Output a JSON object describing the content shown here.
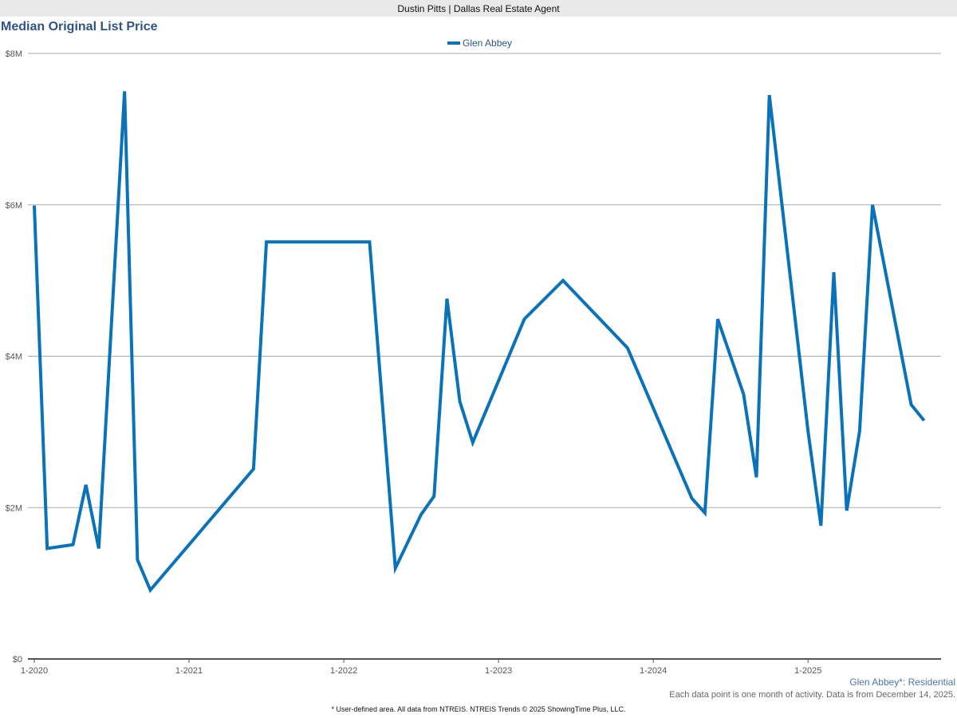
{
  "header": {
    "agent": "Dustin Pitts | Dallas Real Estate Agent"
  },
  "footer": {
    "area_label": "Glen Abbey*: Residential",
    "note": "Each data point is one month of activity. Data is from December 14, 2025.",
    "disclaimer": "* User-defined area. All data from NTREIS. NTREIS Trends © 2025 ShowingTime Plus, LLC."
  },
  "chart_data": {
    "type": "line",
    "title": "Median Original List Price",
    "xlabel": "",
    "ylabel": "",
    "ylim": [
      0,
      8000000
    ],
    "yticks": [
      0,
      2000000,
      4000000,
      6000000,
      8000000
    ],
    "ytick_labels": [
      "$0",
      "$2M",
      "$4M",
      "$6M",
      "$8M"
    ],
    "xtick_labels": [
      "1-2020",
      "1-2021",
      "1-2022",
      "1-2023",
      "1-2024",
      "1-2025"
    ],
    "xtick_months": [
      0,
      12,
      24,
      36,
      48,
      60
    ],
    "xlim_months": [
      0,
      70
    ],
    "grid": true,
    "legend_position": "top-center",
    "color": "#0a72b8",
    "series": [
      {
        "name": "Glen Abbey",
        "x": [
          "2020-01",
          "2020-02",
          "2020-04",
          "2020-05",
          "2020-06",
          "2020-08",
          "2020-09",
          "2020-10",
          "2021-06",
          "2021-07",
          "2022-03",
          "2022-05",
          "2022-07",
          "2022-08",
          "2022-09",
          "2022-10",
          "2022-11",
          "2023-03",
          "2023-06",
          "2023-11",
          "2024-04",
          "2024-05",
          "2024-06",
          "2024-08",
          "2024-09",
          "2024-10",
          "2025-01",
          "2025-02",
          "2025-03",
          "2025-04",
          "2025-05",
          "2025-06",
          "2025-09",
          "2025-10"
        ],
        "values": [
          5990000,
          1460000,
          1510000,
          2300000,
          1460000,
          7500000,
          1310000,
          910000,
          2510000,
          5510000,
          5510000,
          1200000,
          1910000,
          2150000,
          4760000,
          3400000,
          2860000,
          4490000,
          5000000,
          4110000,
          2120000,
          1930000,
          4490000,
          3500000,
          2400000,
          7450000,
          3010000,
          1760000,
          5110000,
          1960000,
          3010000,
          6000000,
          3360000,
          3150000
        ]
      }
    ]
  }
}
